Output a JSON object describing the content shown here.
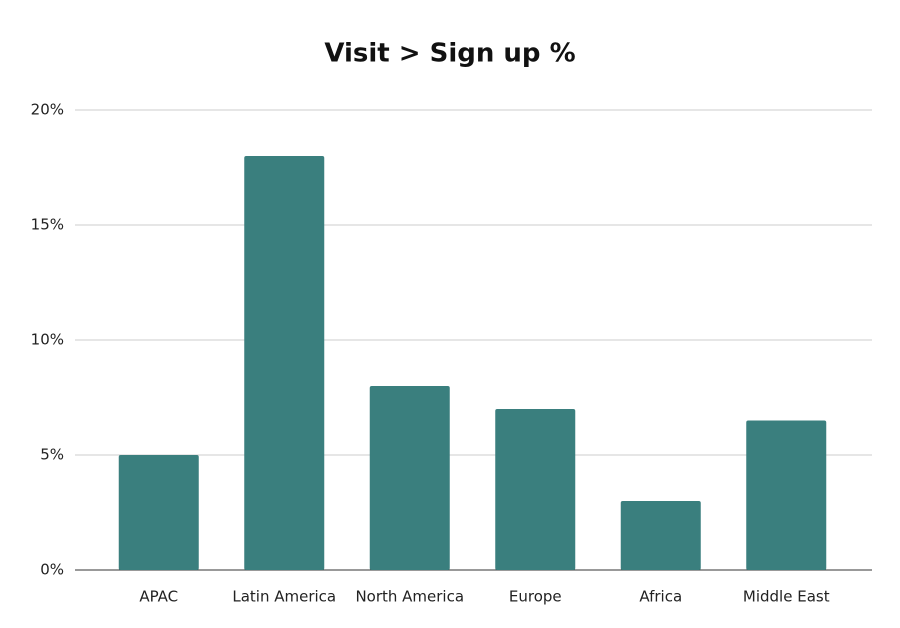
{
  "chart_data": {
    "type": "bar",
    "title": "Visit > Sign up %",
    "categories": [
      "APAC",
      "Latin America",
      "North America",
      "Europe",
      "Africa",
      "Middle East"
    ],
    "values": [
      5,
      18,
      8,
      7,
      3,
      6.5
    ],
    "color": "#3a7f7e",
    "ylim": [
      0,
      20
    ],
    "yticks": [
      {
        "value": 0,
        "label": "0%"
      },
      {
        "value": 5,
        "label": "5%"
      },
      {
        "value": 10,
        "label": "10%"
      },
      {
        "value": 15,
        "label": "15%"
      },
      {
        "value": 20,
        "label": "20%"
      }
    ],
    "grid": true
  }
}
